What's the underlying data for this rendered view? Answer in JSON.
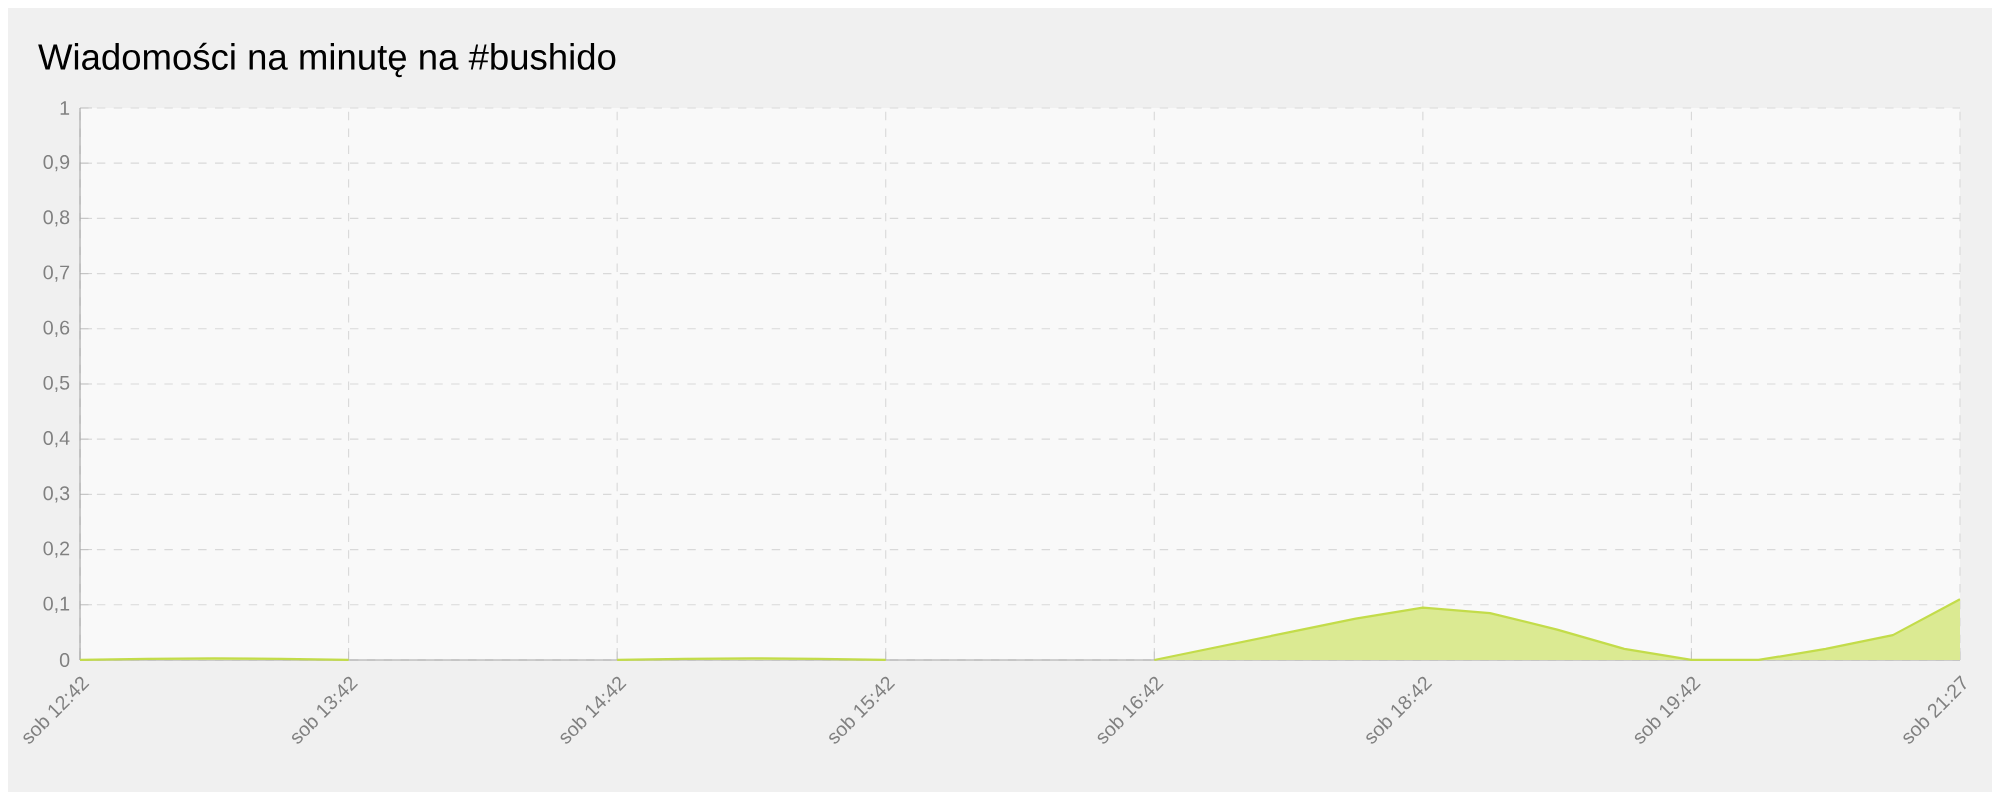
{
  "chart_data": {
    "type": "area",
    "title": "Wiadomości na minutę na #bushido",
    "categories": [
      "sob 12:42",
      null,
      null,
      null,
      "sob 13:42",
      null,
      null,
      null,
      "sob 14:42",
      null,
      null,
      null,
      "sob 15:42",
      null,
      null,
      null,
      "sob 16:42",
      null,
      null,
      null,
      "sob 18:42",
      null,
      null,
      null,
      "sob 19:42",
      null,
      null,
      null,
      "sob 21:27"
    ],
    "series": [
      {
        "color": "#c3dc4a",
        "values": [
          0,
          0.002,
          0.003,
          0.002,
          0,
          null,
          null,
          null,
          0,
          0.002,
          0.003,
          0.002,
          0,
          null,
          null,
          null,
          0,
          0.025,
          0.05,
          0.075,
          0.095,
          0.085,
          0.055,
          0.02,
          0,
          0,
          0.02,
          0.045,
          0.11
        ]
      }
    ],
    "ylim": [
      0,
      1
    ],
    "yticks": [
      {
        "value": 0,
        "label": "0"
      },
      {
        "value": 0.1,
        "label": "0,1"
      },
      {
        "value": 0.2,
        "label": "0,2"
      },
      {
        "value": 0.3,
        "label": "0,3"
      },
      {
        "value": 0.4,
        "label": "0,4"
      },
      {
        "value": 0.5,
        "label": "0,5"
      },
      {
        "value": 0.6,
        "label": "0,6"
      },
      {
        "value": 0.7,
        "label": "0,7"
      },
      {
        "value": 0.8,
        "label": "0,8"
      },
      {
        "value": 0.9,
        "label": "0,9"
      },
      {
        "value": 1,
        "label": "1"
      }
    ],
    "grid": true,
    "marker": "none"
  }
}
